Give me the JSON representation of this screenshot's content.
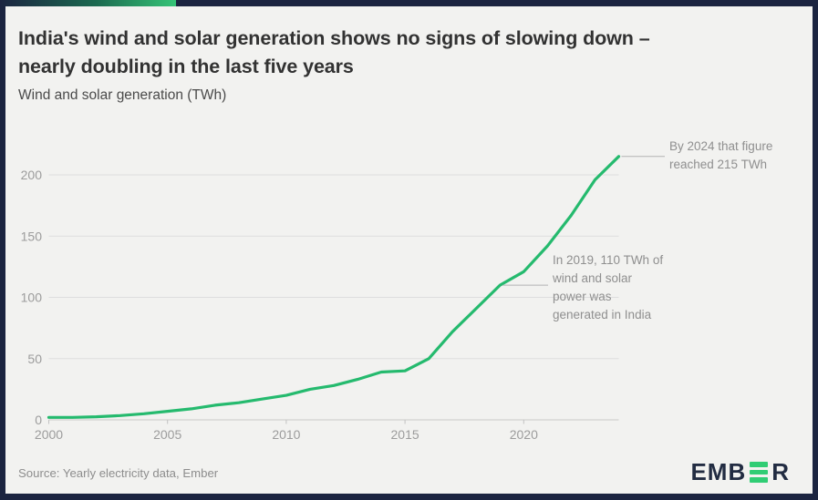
{
  "header": {
    "title_line1": "India's wind and solar generation shows no signs of slowing down –",
    "title_line2": "nearly doubling in the last five years",
    "subtitle": "Wind and solar generation (TWh)"
  },
  "chart_data": {
    "type": "line",
    "title": "India's wind and solar generation shows no signs of slowing down – nearly doubling in the last five years",
    "ylabel": "Wind and solar generation (TWh)",
    "xlabel": "",
    "x": [
      2000,
      2001,
      2002,
      2003,
      2004,
      2005,
      2006,
      2007,
      2008,
      2009,
      2010,
      2011,
      2012,
      2013,
      2014,
      2015,
      2016,
      2017,
      2018,
      2019,
      2020,
      2021,
      2022,
      2023,
      2024
    ],
    "series": [
      {
        "name": "Wind and solar generation (TWh)",
        "values": [
          2,
          2,
          2.5,
          3.5,
          5,
          7,
          9,
          12,
          14,
          17,
          20,
          25,
          28,
          33,
          39,
          40,
          50,
          72,
          91,
          110,
          121,
          142,
          167,
          196,
          215
        ]
      }
    ],
    "xticks": [
      2000,
      2005,
      2010,
      2015,
      2020
    ],
    "yticks": [
      0,
      50,
      100,
      150,
      200
    ],
    "ylim": [
      0,
      220
    ],
    "xlim": [
      2000,
      2024
    ],
    "grid": "horizontal-only",
    "legend": "none",
    "line_color": "#25ba6e",
    "annotations": [
      {
        "x": 2019,
        "y": 110,
        "lines": [
          "In 2019, 110 TWh of",
          "wind and solar",
          "power was",
          "generated in India"
        ],
        "text": "In 2019, 110 TWh of wind and solar power was generated in India"
      },
      {
        "x": 2024,
        "y": 215,
        "lines": [
          "By 2024 that figure",
          "reached 215 TWh"
        ],
        "text": "By 2024 that figure reached 215 TWh"
      }
    ]
  },
  "footer": {
    "source": "Source: Yearly electricity data, Ember",
    "logo": {
      "part1": "EMB",
      "part2": "R"
    }
  },
  "colors": {
    "frame_navy": "#1b2440",
    "card_bg": "#f2f2f0",
    "line_green": "#25ba6e",
    "logo_green": "#30cd74",
    "gridline": "#dedede",
    "axis_label": "#9c9c9c",
    "annotation_text": "#8f8f8f"
  }
}
